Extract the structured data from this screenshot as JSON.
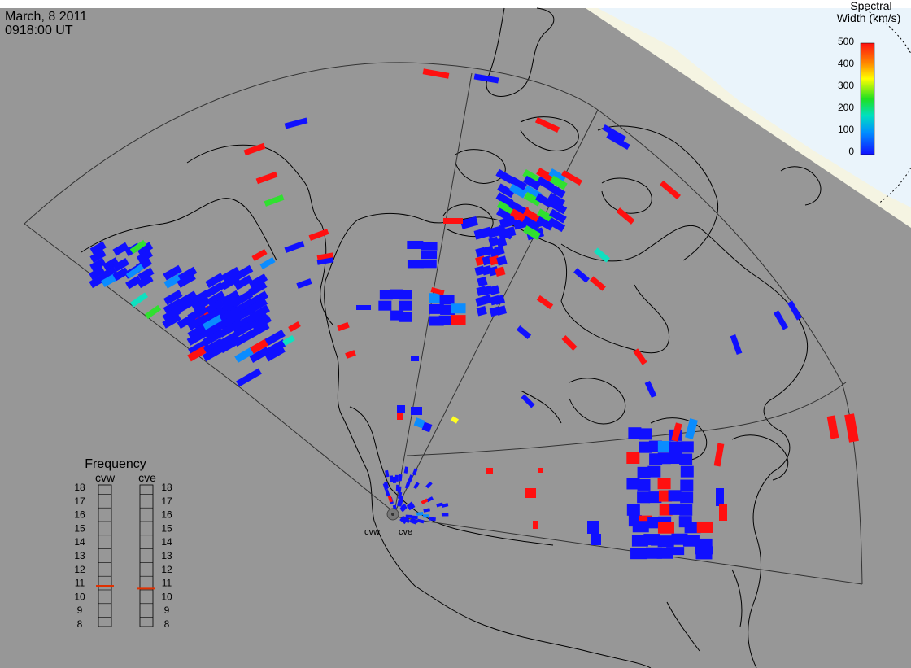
{
  "header": {
    "date": "March, 8 2011",
    "time": "0918:00 UT"
  },
  "colorbar": {
    "title_line1": "Spectral",
    "title_line2": "Width (km/s)",
    "ticks": [
      "500",
      "400",
      "300",
      "200",
      "100",
      "0"
    ],
    "range": [
      0,
      500
    ],
    "colormap": [
      "#1010ff",
      "#00c8ff",
      "#20e040",
      "#ffff00",
      "#ff8800",
      "#ff1010"
    ]
  },
  "frequency_panel": {
    "title": "Frequency",
    "radars": [
      {
        "name": "cvw",
        "value": 10.8
      },
      {
        "name": "cve",
        "value": 10.6
      }
    ],
    "ticks": [
      "18",
      "17",
      "16",
      "15",
      "14",
      "13",
      "12",
      "11",
      "10",
      "9",
      "8"
    ]
  },
  "site_labels": [
    "cvw",
    "cve"
  ],
  "colors": {
    "land": "#979797",
    "daylight": "#eaf4fb",
    "twilight": "#f5f4e2",
    "low_width": "#1010ff",
    "high_width": "#ff1010"
  }
}
